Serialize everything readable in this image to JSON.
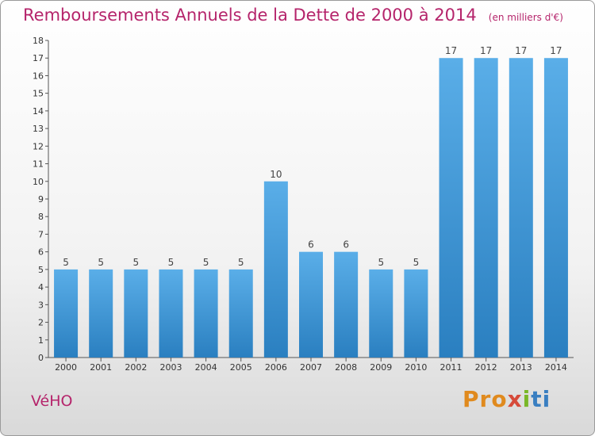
{
  "header": {
    "title": "Remboursements Annuels de la Dette de 2000 à 2014",
    "subtitle": "(en milliers d'€)"
  },
  "footer": {
    "commune": "VéHO",
    "logo_parts": [
      "Pro",
      "x",
      "i",
      "ti"
    ]
  },
  "colors": {
    "title": "#b5246b",
    "bar_light": "#5aaee8",
    "bar_dark": "#2a7fc0"
  },
  "chart_data": {
    "type": "bar",
    "title": "Remboursements Annuels de la Dette de 2000 à 2014",
    "subtitle": "(en milliers d'€)",
    "categories": [
      "2000",
      "2001",
      "2002",
      "2003",
      "2004",
      "2005",
      "2006",
      "2007",
      "2008",
      "2009",
      "2010",
      "2011",
      "2012",
      "2013",
      "2014"
    ],
    "values": [
      5,
      5,
      5,
      5,
      5,
      5,
      10,
      6,
      6,
      5,
      5,
      17,
      17,
      17,
      17
    ],
    "ylim": [
      0,
      18
    ],
    "yticks": [
      0,
      1,
      2,
      3,
      4,
      5,
      6,
      7,
      8,
      9,
      10,
      11,
      12,
      13,
      14,
      15,
      16,
      17,
      18
    ],
    "grid": false,
    "data_labels": true
  }
}
